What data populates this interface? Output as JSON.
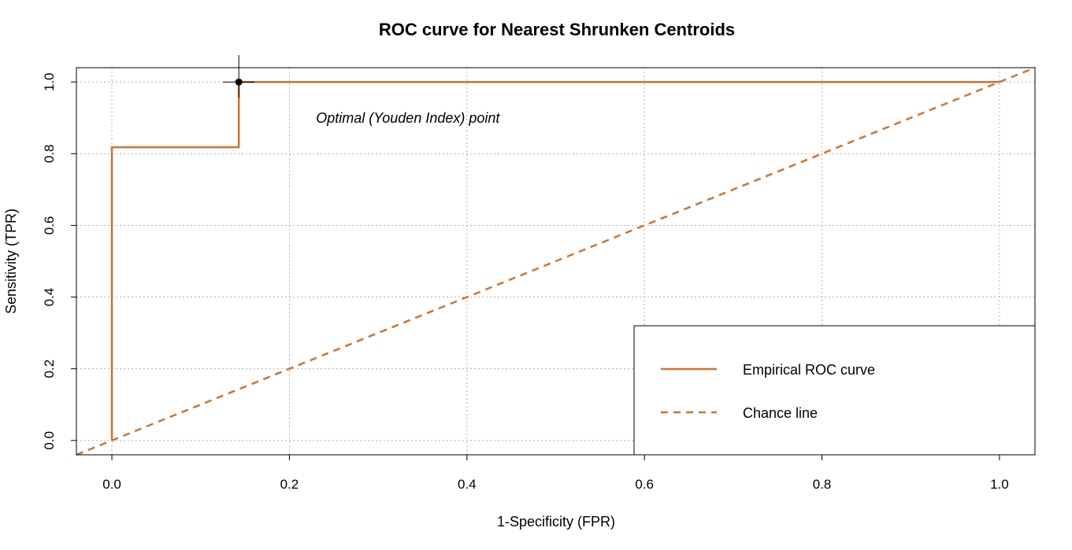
{
  "chart_data": {
    "type": "line",
    "title": "ROC curve for Nearest Shrunken Centroids",
    "xlabel": "1-Specificity (FPR)",
    "ylabel": "Sensitivity (TPR)",
    "xlim": [
      -0.04,
      1.04
    ],
    "ylim": [
      -0.04,
      1.04
    ],
    "x_ticks": [
      0.0,
      0.2,
      0.4,
      0.6,
      0.8,
      1.0
    ],
    "y_ticks": [
      0.0,
      0.2,
      0.4,
      0.6,
      0.8,
      1.0
    ],
    "x_tick_labels": [
      "0.0",
      "0.2",
      "0.4",
      "0.6",
      "0.8",
      "1.0"
    ],
    "y_tick_labels": [
      "0.0",
      "0.2",
      "0.4",
      "0.6",
      "0.8",
      "1.0"
    ],
    "grid": true,
    "series": [
      {
        "name": "Empirical ROC curve",
        "style": "solid",
        "color": "#d2722e",
        "x": [
          0.0,
          0.0,
          0.143,
          0.143,
          1.0
        ],
        "y": [
          0.0,
          0.818,
          0.818,
          1.0,
          1.0
        ]
      },
      {
        "name": "Chance line",
        "style": "dashed",
        "color": "#d2722e",
        "x": [
          -0.04,
          1.04
        ],
        "y": [
          -0.04,
          1.04
        ]
      }
    ],
    "optimal_point": {
      "x": 0.143,
      "y": 1.0
    },
    "annotation": {
      "text": "Optimal (Youden Index) point",
      "x": 0.23,
      "y": 0.9
    },
    "legend_position": "bottom-right"
  }
}
